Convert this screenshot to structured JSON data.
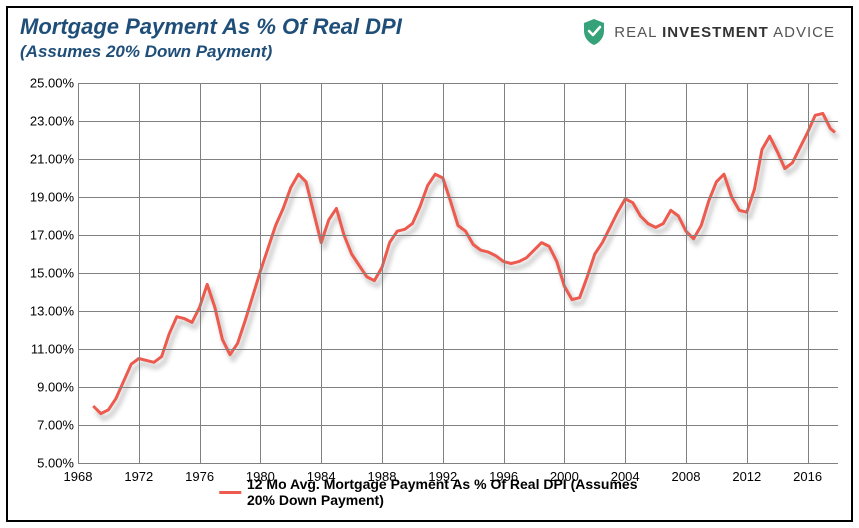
{
  "title": "Mortgage Payment As % Of Real DPI",
  "subtitle": "(Assumes 20% Down Payment)",
  "brand": {
    "text_left": "REAL",
    "text_mid": "INVESTMENT",
    "text_right": "ADVICE",
    "shield_color": "#35a27a",
    "check_color": "#ffffff"
  },
  "legend": {
    "label": "12 Mo Avg. Mortgage Payment As % Of Real DPI (Assumes 20% Down Payment)"
  },
  "chart": {
    "type": "line",
    "xlim": [
      1968,
      2018
    ],
    "ylim": [
      5,
      25
    ],
    "ytick_step": 2,
    "ytick_format_suffix": ".00%",
    "xticks": [
      1968,
      1972,
      1976,
      1980,
      1984,
      1988,
      1992,
      1996,
      2000,
      2004,
      2008,
      2012,
      2016
    ],
    "grid_color": "#808080",
    "background_color": "#ffffff",
    "series_color": "#ed5a4e",
    "line_width": 3,
    "shadow": true,
    "title_fontsize": 22,
    "subtitle_fontsize": 17,
    "title_color": "#1f4e79",
    "label_fontsize": 13,
    "data": [
      {
        "x": 1969.0,
        "y": 8.0
      },
      {
        "x": 1969.5,
        "y": 7.6
      },
      {
        "x": 1970.0,
        "y": 7.8
      },
      {
        "x": 1970.5,
        "y": 8.4
      },
      {
        "x": 1971.0,
        "y": 9.3
      },
      {
        "x": 1971.5,
        "y": 10.2
      },
      {
        "x": 1972.0,
        "y": 10.5
      },
      {
        "x": 1972.5,
        "y": 10.4
      },
      {
        "x": 1973.0,
        "y": 10.3
      },
      {
        "x": 1973.5,
        "y": 10.6
      },
      {
        "x": 1974.0,
        "y": 11.8
      },
      {
        "x": 1974.5,
        "y": 12.7
      },
      {
        "x": 1975.0,
        "y": 12.6
      },
      {
        "x": 1975.5,
        "y": 12.4
      },
      {
        "x": 1976.0,
        "y": 13.2
      },
      {
        "x": 1976.5,
        "y": 14.4
      },
      {
        "x": 1977.0,
        "y": 13.2
      },
      {
        "x": 1977.5,
        "y": 11.5
      },
      {
        "x": 1978.0,
        "y": 10.7
      },
      {
        "x": 1978.5,
        "y": 11.3
      },
      {
        "x": 1979.0,
        "y": 12.5
      },
      {
        "x": 1979.5,
        "y": 13.8
      },
      {
        "x": 1980.0,
        "y": 15.1
      },
      {
        "x": 1980.5,
        "y": 16.3
      },
      {
        "x": 1981.0,
        "y": 17.5
      },
      {
        "x": 1981.5,
        "y": 18.4
      },
      {
        "x": 1982.0,
        "y": 19.5
      },
      {
        "x": 1982.5,
        "y": 20.2
      },
      {
        "x": 1983.0,
        "y": 19.8
      },
      {
        "x": 1983.5,
        "y": 18.2
      },
      {
        "x": 1984.0,
        "y": 16.6
      },
      {
        "x": 1984.5,
        "y": 17.8
      },
      {
        "x": 1985.0,
        "y": 18.4
      },
      {
        "x": 1985.5,
        "y": 17.0
      },
      {
        "x": 1986.0,
        "y": 16.0
      },
      {
        "x": 1986.5,
        "y": 15.4
      },
      {
        "x": 1987.0,
        "y": 14.8
      },
      {
        "x": 1987.5,
        "y": 14.6
      },
      {
        "x": 1988.0,
        "y": 15.3
      },
      {
        "x": 1988.5,
        "y": 16.6
      },
      {
        "x": 1989.0,
        "y": 17.2
      },
      {
        "x": 1989.5,
        "y": 17.3
      },
      {
        "x": 1990.0,
        "y": 17.6
      },
      {
        "x": 1990.5,
        "y": 18.5
      },
      {
        "x": 1991.0,
        "y": 19.6
      },
      {
        "x": 1991.5,
        "y": 20.2
      },
      {
        "x": 1992.0,
        "y": 20.0
      },
      {
        "x": 1992.5,
        "y": 18.8
      },
      {
        "x": 1993.0,
        "y": 17.5
      },
      {
        "x": 1993.5,
        "y": 17.2
      },
      {
        "x": 1994.0,
        "y": 16.5
      },
      {
        "x": 1994.5,
        "y": 16.2
      },
      {
        "x": 1995.0,
        "y": 16.1
      },
      {
        "x": 1995.5,
        "y": 15.9
      },
      {
        "x": 1996.0,
        "y": 15.6
      },
      {
        "x": 1996.5,
        "y": 15.5
      },
      {
        "x": 1997.0,
        "y": 15.6
      },
      {
        "x": 1997.5,
        "y": 15.8
      },
      {
        "x": 1998.0,
        "y": 16.2
      },
      {
        "x": 1998.5,
        "y": 16.6
      },
      {
        "x": 1999.0,
        "y": 16.4
      },
      {
        "x": 1999.5,
        "y": 15.6
      },
      {
        "x": 2000.0,
        "y": 14.3
      },
      {
        "x": 2000.5,
        "y": 13.6
      },
      {
        "x": 2001.0,
        "y": 13.7
      },
      {
        "x": 2001.5,
        "y": 14.8
      },
      {
        "x": 2002.0,
        "y": 16.0
      },
      {
        "x": 2002.5,
        "y": 16.6
      },
      {
        "x": 2003.0,
        "y": 17.4
      },
      {
        "x": 2003.5,
        "y": 18.2
      },
      {
        "x": 2004.0,
        "y": 18.9
      },
      {
        "x": 2004.5,
        "y": 18.7
      },
      {
        "x": 2005.0,
        "y": 18.0
      },
      {
        "x": 2005.5,
        "y": 17.6
      },
      {
        "x": 2006.0,
        "y": 17.4
      },
      {
        "x": 2006.5,
        "y": 17.6
      },
      {
        "x": 2007.0,
        "y": 18.3
      },
      {
        "x": 2007.5,
        "y": 18.0
      },
      {
        "x": 2008.0,
        "y": 17.2
      },
      {
        "x": 2008.5,
        "y": 16.8
      },
      {
        "x": 2009.0,
        "y": 17.5
      },
      {
        "x": 2009.5,
        "y": 18.8
      },
      {
        "x": 2010.0,
        "y": 19.8
      },
      {
        "x": 2010.5,
        "y": 20.2
      },
      {
        "x": 2011.0,
        "y": 19.0
      },
      {
        "x": 2011.5,
        "y": 18.3
      },
      {
        "x": 2012.0,
        "y": 18.2
      },
      {
        "x": 2012.5,
        "y": 19.4
      },
      {
        "x": 2013.0,
        "y": 21.5
      },
      {
        "x": 2013.5,
        "y": 22.2
      },
      {
        "x": 2014.0,
        "y": 21.4
      },
      {
        "x": 2014.5,
        "y": 20.5
      },
      {
        "x": 2015.0,
        "y": 20.8
      },
      {
        "x": 2015.5,
        "y": 21.6
      },
      {
        "x": 2016.0,
        "y": 22.4
      },
      {
        "x": 2016.5,
        "y": 23.3
      },
      {
        "x": 2017.0,
        "y": 23.4
      },
      {
        "x": 2017.5,
        "y": 22.6
      },
      {
        "x": 2017.8,
        "y": 22.4
      }
    ]
  }
}
